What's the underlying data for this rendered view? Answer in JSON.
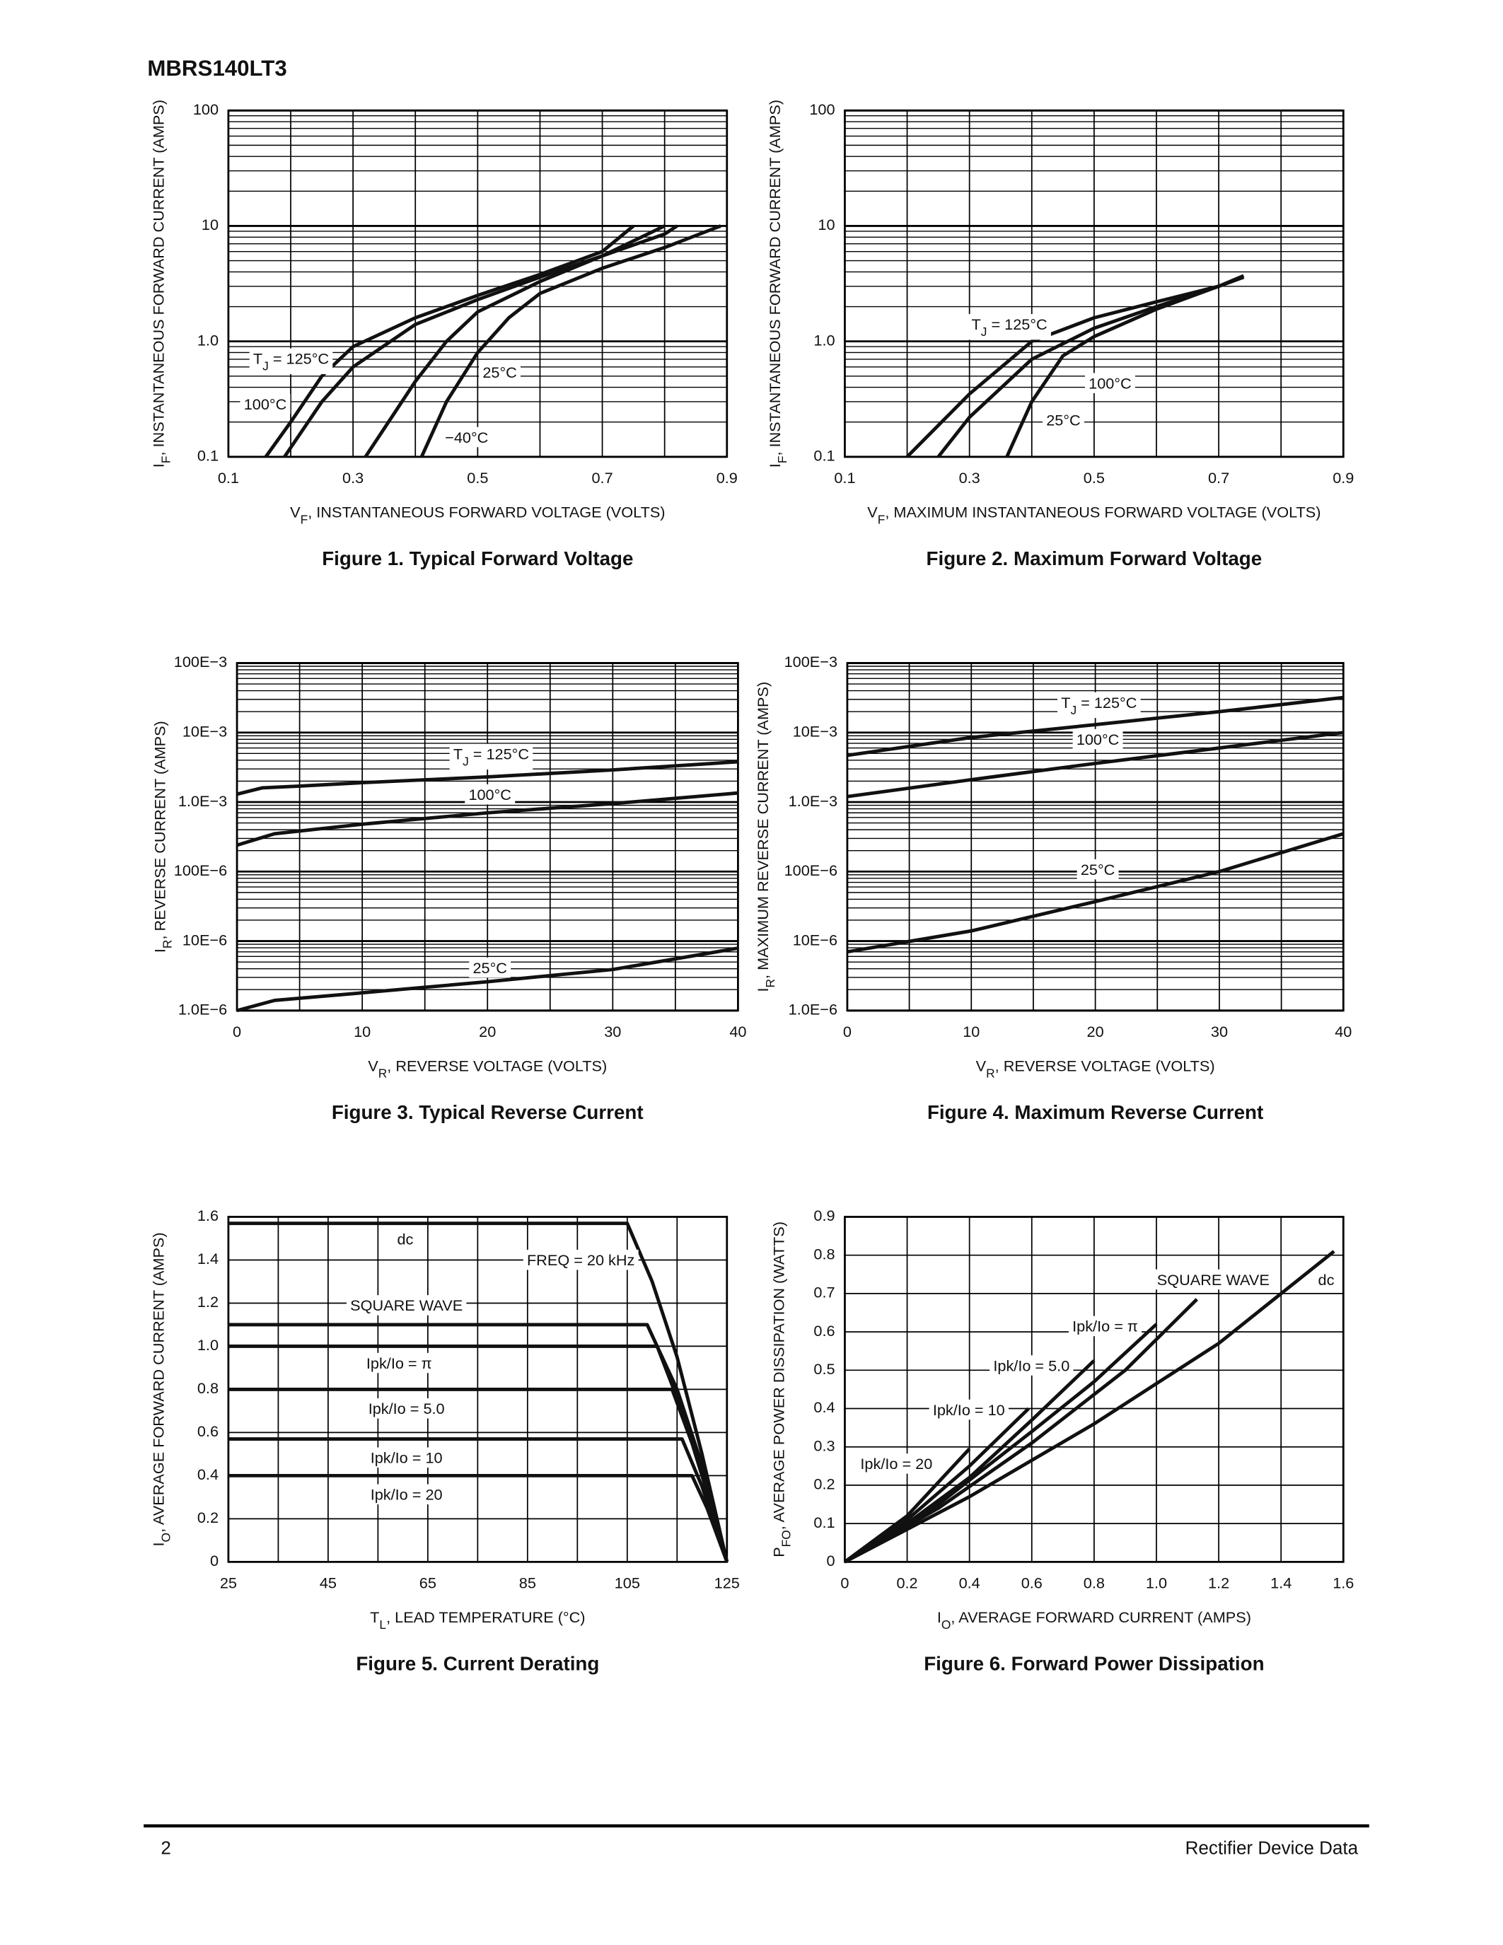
{
  "header": "MBRS140LT3",
  "footer": {
    "page": "2",
    "right": "Rectifier Device Data"
  },
  "chart_data": [
    {
      "type": "line",
      "title": "Figure 1. Typical Forward Voltage",
      "x_label": [
        "V",
        "F",
        ", INSTANTANEOUS FORWARD VOLTAGE (VOLTS)"
      ],
      "y_label": [
        "I",
        "F",
        ", INSTANTANEOUS FORWARD CURRENT (AMPS)"
      ],
      "xlim": [
        0.1,
        0.9
      ],
      "xticks": [
        0.1,
        0.3,
        0.5,
        0.7,
        0.9
      ],
      "ylim": [
        0.1,
        100
      ],
      "yticks": [
        0.1,
        {
          "value": 1,
          "label": "1.0"
        },
        10,
        100
      ],
      "y_log": true,
      "grid": true,
      "x_grid_midlines": true,
      "series": [
        {
          "name": [
            "T",
            "J",
            " = 125°C"
          ],
          "color": "#111",
          "x": [
            0.16,
            0.2,
            0.25,
            0.3,
            0.4,
            0.5,
            0.6,
            0.7,
            0.75
          ],
          "values": [
            0.1,
            0.2,
            0.5,
            0.9,
            1.6,
            2.5,
            3.8,
            6,
            10
          ]
        },
        {
          "name": [
            "100°C"
          ],
          "color": "#111",
          "x": [
            0.19,
            0.25,
            0.3,
            0.4,
            0.5,
            0.6,
            0.7,
            0.8
          ],
          "values": [
            0.1,
            0.3,
            0.6,
            1.4,
            2.3,
            3.6,
            5.5,
            10
          ]
        },
        {
          "name": [
            "25°C"
          ],
          "color": "#111",
          "x": [
            0.32,
            0.4,
            0.45,
            0.5,
            0.6,
            0.7,
            0.8,
            0.82
          ],
          "values": [
            0.1,
            0.45,
            1.0,
            1.8,
            3.3,
            5.5,
            8.5,
            10
          ]
        },
        {
          "name": [
            "−40°C"
          ],
          "color": "#111",
          "x": [
            0.41,
            0.45,
            0.5,
            0.55,
            0.6,
            0.7,
            0.8,
            0.89
          ],
          "values": [
            0.1,
            0.3,
            0.8,
            1.6,
            2.6,
            4.3,
            6.5,
            10
          ]
        }
      ]
    },
    {
      "type": "line",
      "title": "Figure 2. Maximum Forward Voltage",
      "x_label": [
        "V",
        "F",
        ", MAXIMUM INSTANTANEOUS FORWARD VOLTAGE (VOLTS)"
      ],
      "y_label": [
        "I",
        "F",
        ", INSTANTANEOUS FORWARD CURRENT (AMPS)"
      ],
      "xlim": [
        0.1,
        0.9
      ],
      "xticks": [
        0.1,
        0.3,
        0.5,
        0.7,
        0.9
      ],
      "ylim": [
        0.1,
        100
      ],
      "yticks": [
        0.1,
        {
          "value": 1,
          "label": "1.0"
        },
        10,
        100
      ],
      "y_log": true,
      "grid": true,
      "x_grid_midlines": true,
      "series": [
        {
          "name": [
            "T",
            "J",
            " = 125°C"
          ],
          "color": "#111",
          "x": [
            0.2,
            0.3,
            0.4,
            0.5,
            0.6,
            0.7,
            0.74
          ],
          "values": [
            0.1,
            0.35,
            1.0,
            1.6,
            2.2,
            3.0,
            3.6
          ]
        },
        {
          "name": [
            "100°C"
          ],
          "color": "#111",
          "x": [
            0.25,
            0.3,
            0.4,
            0.5,
            0.6,
            0.7,
            0.74
          ],
          "values": [
            0.1,
            0.22,
            0.7,
            1.3,
            2.0,
            3.0,
            3.6
          ]
        },
        {
          "name": [
            "25°C"
          ],
          "color": "#111",
          "x": [
            0.36,
            0.4,
            0.45,
            0.5,
            0.6,
            0.7,
            0.74
          ],
          "values": [
            0.1,
            0.3,
            0.75,
            1.1,
            1.9,
            3.0,
            3.7
          ]
        }
      ]
    },
    {
      "type": "line",
      "title": "Figure 3. Typical Reverse Current",
      "x_label": [
        "V",
        "R",
        ", REVERSE VOLTAGE (VOLTS)"
      ],
      "y_label": [
        "I",
        "R",
        ", REVERSE CURRENT (AMPS)"
      ],
      "xlim": [
        0,
        40
      ],
      "xticks": [
        0,
        10,
        20,
        30,
        40
      ],
      "ylim": [
        1e-06,
        0.1
      ],
      "yticks": [
        {
          "value": 1e-06,
          "label": "1.0E−6"
        },
        {
          "value": 1e-05,
          "label": "10E−6"
        },
        {
          "value": 0.0001,
          "label": "100E−6"
        },
        {
          "value": 0.001,
          "label": "1.0E−3"
        },
        {
          "value": 0.01,
          "label": "10E−3"
        },
        {
          "value": 0.1,
          "label": "100E−3"
        }
      ],
      "y_log": true,
      "grid": true,
      "x_grid_midlines": true,
      "series": [
        {
          "name": [
            "T",
            "J",
            " = 125°C"
          ],
          "color": "#111",
          "x": [
            0,
            2,
            5,
            10,
            20,
            30,
            40
          ],
          "values": [
            0.0013,
            0.0016,
            0.0017,
            0.0019,
            0.0023,
            0.0029,
            0.0038
          ]
        },
        {
          "name": [
            "100°C"
          ],
          "color": "#111",
          "x": [
            0,
            3,
            10,
            20,
            30,
            40
          ],
          "values": [
            0.00024,
            0.00035,
            0.00048,
            0.0007,
            0.00095,
            0.00135
          ]
        },
        {
          "name": [
            "25°C"
          ],
          "color": "#111",
          "x": [
            0,
            3,
            10,
            20,
            30,
            40
          ],
          "values": [
            1e-06,
            1.4e-06,
            1.8e-06,
            2.6e-06,
            3.9e-06,
            7.9e-06
          ]
        }
      ]
    },
    {
      "type": "line",
      "title": "Figure 4. Maximum Reverse Current",
      "x_label": [
        "V",
        "R",
        ", REVERSE VOLTAGE (VOLTS)"
      ],
      "y_label": [
        "I",
        "R",
        ", MAXIMUM REVERSE CURRENT (AMPS)"
      ],
      "xlim": [
        0,
        40
      ],
      "xticks": [
        0,
        10,
        20,
        30,
        40
      ],
      "ylim": [
        1e-06,
        0.1
      ],
      "yticks": [
        {
          "value": 1e-06,
          "label": "1.0E−6"
        },
        {
          "value": 1e-05,
          "label": "10E−6"
        },
        {
          "value": 0.0001,
          "label": "100E−6"
        },
        {
          "value": 0.001,
          "label": "1.0E−3"
        },
        {
          "value": 0.01,
          "label": "10E−3"
        },
        {
          "value": 0.1,
          "label": "100E−3"
        }
      ],
      "y_log": true,
      "grid": true,
      "x_grid_midlines": true,
      "series": [
        {
          "name": [
            "T",
            "J",
            " = 125°C"
          ],
          "color": "#111",
          "x": [
            0,
            10,
            20,
            30,
            40
          ],
          "values": [
            0.0047,
            0.0085,
            0.013,
            0.02,
            0.032
          ]
        },
        {
          "name": [
            "100°C"
          ],
          "color": "#111",
          "x": [
            0,
            10,
            20,
            30,
            40
          ],
          "values": [
            0.0012,
            0.0021,
            0.0036,
            0.006,
            0.01
          ]
        },
        {
          "name": [
            "25°C"
          ],
          "color": "#111",
          "x": [
            0,
            10,
            20,
            30,
            40
          ],
          "values": [
            7e-06,
            1.4e-05,
            3.7e-05,
            0.0001,
            0.00035
          ]
        }
      ]
    },
    {
      "type": "line",
      "title": "Figure 5. Current Derating",
      "x_label": [
        "T",
        "L",
        ", LEAD TEMPERATURE (°C)"
      ],
      "y_label": [
        "I",
        "O",
        ", AVERAGE FORWARD CURRENT (AMPS)"
      ],
      "xlim": [
        25,
        125
      ],
      "xticks": [
        25,
        45,
        65,
        85,
        105,
        125
      ],
      "ylim": [
        0,
        1.6
      ],
      "yticks": [
        0,
        0.2,
        0.4,
        0.6,
        0.8,
        {
          "value": 1,
          "label": "1.0"
        },
        1.2,
        1.4,
        1.6
      ],
      "y_log": false,
      "grid": true,
      "x_grid_midlines": true,
      "annotations": [
        [
          "FREQ = 20 kHz"
        ]
      ],
      "series": [
        {
          "name": [
            "dc"
          ],
          "color": "#111",
          "x": [
            25,
            105,
            110,
            115,
            120,
            125
          ],
          "values": [
            1.57,
            1.57,
            1.3,
            0.95,
            0.5,
            0
          ]
        },
        {
          "name": [
            "SQUARE WAVE"
          ],
          "color": "#111",
          "x": [
            25,
            109,
            115,
            120,
            125
          ],
          "values": [
            1.1,
            1.1,
            0.8,
            0.45,
            0
          ]
        },
        {
          "name": [
            "Ipk/Io = π"
          ],
          "color": "#111",
          "x": [
            25,
            111,
            116,
            121,
            125
          ],
          "values": [
            1.0,
            1.0,
            0.7,
            0.35,
            0
          ]
        },
        {
          "name": [
            "Ipk/Io = 5.0"
          ],
          "color": "#111",
          "x": [
            25,
            114,
            118,
            122,
            125
          ],
          "values": [
            0.8,
            0.8,
            0.55,
            0.25,
            0
          ]
        },
        {
          "name": [
            "Ipk/Io = 10"
          ],
          "color": "#111",
          "x": [
            25,
            116,
            120,
            125
          ],
          "values": [
            0.57,
            0.57,
            0.35,
            0
          ]
        },
        {
          "name": [
            "Ipk/Io = 20"
          ],
          "color": "#111",
          "x": [
            25,
            118,
            121,
            125
          ],
          "values": [
            0.4,
            0.4,
            0.25,
            0
          ]
        }
      ]
    },
    {
      "type": "line",
      "title": "Figure 6. Forward Power Dissipation",
      "x_label": [
        "I",
        "O",
        ", AVERAGE FORWARD CURRENT (AMPS)"
      ],
      "y_label": [
        "P",
        "FO",
        ", AVERAGE POWER DISSIPATION (WATTS)"
      ],
      "xlim": [
        0,
        1.6
      ],
      "xticks": [
        0,
        0.2,
        0.4,
        0.6,
        0.8,
        {
          "value": 1,
          "label": "1.0"
        },
        1.2,
        1.4,
        1.6
      ],
      "ylim": [
        0,
        0.9
      ],
      "yticks": [
        0,
        0.1,
        0.2,
        0.3,
        0.4,
        0.5,
        0.6,
        0.7,
        0.8,
        0.9
      ],
      "y_log": false,
      "grid": true,
      "x_grid_midlines": false,
      "series": [
        {
          "name": [
            "dc"
          ],
          "color": "#111",
          "x": [
            0,
            0.4,
            0.8,
            1.2,
            1.57
          ],
          "values": [
            0,
            0.17,
            0.36,
            0.57,
            0.81
          ]
        },
        {
          "name": [
            "SQUARE WAVE"
          ],
          "color": "#111",
          "x": [
            0,
            0.3,
            0.6,
            0.9,
            1.13
          ],
          "values": [
            0,
            0.14,
            0.31,
            0.5,
            0.685
          ]
        },
        {
          "name": [
            "Ipk/Io = π"
          ],
          "color": "#111",
          "x": [
            0,
            0.3,
            0.6,
            0.8,
            1.0
          ],
          "values": [
            0,
            0.15,
            0.34,
            0.47,
            0.62
          ]
        },
        {
          "name": [
            "Ipk/Io = 5.0"
          ],
          "color": "#111",
          "x": [
            0,
            0.2,
            0.4,
            0.6,
            0.8
          ],
          "values": [
            0,
            0.1,
            0.22,
            0.37,
            0.525
          ]
        },
        {
          "name": [
            "Ipk/Io = 10"
          ],
          "color": "#111",
          "x": [
            0,
            0.2,
            0.4,
            0.59
          ],
          "values": [
            0,
            0.11,
            0.25,
            0.4
          ]
        },
        {
          "name": [
            "Ipk/Io = 20"
          ],
          "color": "#111",
          "x": [
            0,
            0.2,
            0.4
          ],
          "values": [
            0,
            0.12,
            0.295
          ]
        }
      ]
    }
  ]
}
